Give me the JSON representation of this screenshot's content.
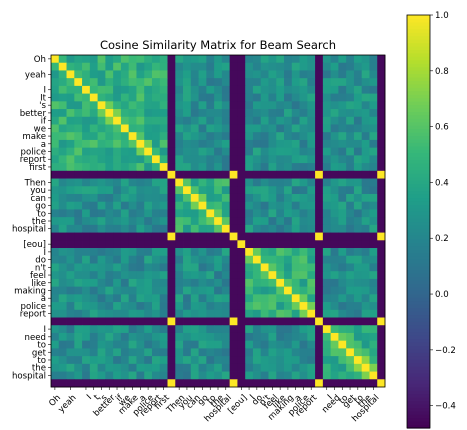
{
  "chart_data": {
    "type": "heatmap",
    "title": "Cosine Similarity Matrix for Beam Search",
    "tokens": [
      "Oh",
      ",",
      "yeah",
      ",",
      "I",
      "t",
      "'s",
      "better",
      "if",
      "we",
      "make",
      "a",
      "police",
      "report",
      "first",
      ".",
      "Then",
      "you",
      "can",
      "go",
      "to",
      "the",
      "hospital",
      ".",
      "[eou]",
      "I",
      "do",
      "n't",
      "feel",
      "like",
      "making",
      "a",
      "police",
      "report",
      ".",
      "I",
      "need",
      "to",
      "get",
      "to",
      "the",
      "hospital",
      "."
    ],
    "y_tick_labels": [
      "Oh",
      "yeah",
      "I",
      "It",
      "'s",
      "better",
      "if",
      "we",
      "make",
      "a",
      "police",
      "report",
      "first",
      "Then",
      "you",
      "can",
      "go",
      "to",
      "the",
      "hospital",
      "[eou]",
      "I",
      "do",
      "n't",
      "feel",
      "like",
      "making",
      "a",
      "police",
      "report",
      "I",
      "need",
      "to",
      "get",
      "to",
      "the",
      "hospital"
    ],
    "x_tick_labels": [
      "Oh",
      "yeah",
      "I",
      "t",
      "'s",
      "better",
      "if",
      "we",
      "make",
      "a",
      "police",
      "report",
      "first",
      "Then",
      "you",
      "can",
      "go",
      "to",
      "the",
      "hospital",
      "[eou]",
      "I",
      "do",
      "n't",
      "feel",
      "like",
      "making",
      "a",
      "police",
      "report",
      "I",
      "need",
      "to",
      "get",
      "to",
      "the",
      "hospital"
    ],
    "colorbar": {
      "min": -0.48,
      "max": 1.0,
      "ticks": [
        -0.4,
        -0.2,
        0.0,
        0.2,
        0.4,
        0.6,
        0.8,
        1.0
      ],
      "tick_labels": [
        "−0.4",
        "−0.2",
        "0.0",
        "0.2",
        "0.4",
        "0.6",
        "0.8",
        "1.0"
      ],
      "colormap": "viridis"
    },
    "structure": {
      "diagonal_value": 1.0,
      "punctuation_separator_value": -0.45,
      "same_sentence_value": 0.45,
      "cross_sentence_value": 0.25,
      "sentence_groups": [
        [
          0,
          15
        ],
        [
          16,
          23
        ],
        [
          24,
          24
        ],
        [
          25,
          34
        ],
        [
          35,
          42
        ]
      ]
    }
  }
}
